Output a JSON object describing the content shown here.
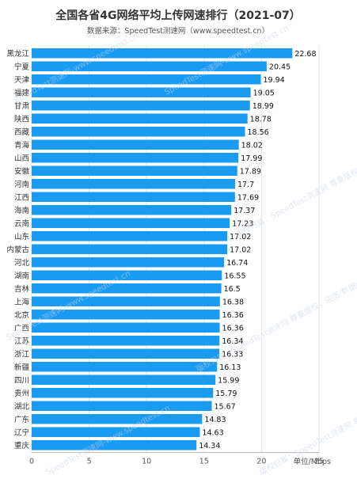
{
  "chart_data": {
    "type": "bar",
    "orientation": "horizontal",
    "title": "全国各省4G网络平均上传网速排行（2021-07）",
    "subtitle": "数据来源：SpeedTest测速网（www.speedtest.cn）",
    "categories": [
      "黑龙江",
      "宁夏",
      "天津",
      "福建",
      "甘肃",
      "陕西",
      "西藏",
      "青海",
      "山西",
      "安徽",
      "河南",
      "江西",
      "海南",
      "云南",
      "山东",
      "内蒙古",
      "河北",
      "湖南",
      "吉林",
      "上海",
      "北京",
      "广西",
      "江苏",
      "浙江",
      "新疆",
      "四川",
      "贵州",
      "湖北",
      "广东",
      "辽宁",
      "重庆"
    ],
    "values": [
      22.68,
      20.45,
      19.94,
      19.05,
      18.99,
      18.78,
      18.56,
      18.02,
      17.99,
      17.89,
      17.7,
      17.69,
      17.37,
      17.23,
      17.02,
      17.02,
      16.74,
      16.55,
      16.5,
      16.38,
      16.36,
      16.36,
      16.34,
      16.33,
      16.13,
      15.99,
      15.79,
      15.67,
      14.83,
      14.63,
      14.34
    ],
    "value_labels": [
      "22.68",
      "20.45",
      "19.94",
      "19.05",
      "18.99",
      "18.78",
      "18.56",
      "18.02",
      "17.99",
      "17.89",
      "17.7",
      "17.69",
      "17.37",
      "17.23",
      "17.02",
      "17.02",
      "16.74",
      "16.55",
      "16.5",
      "16.38",
      "16.36",
      "16.36",
      "16.34",
      "16.33",
      "16.13",
      "15.99",
      "15.79",
      "15.67",
      "14.83",
      "14.63",
      "14.34"
    ],
    "x_ticks": [
      0,
      5,
      10,
      15,
      20,
      25
    ],
    "xlim": [
      0,
      25
    ],
    "xlabel": "单位/Mbps",
    "ylabel": "",
    "bar_color": "#1a9bf2",
    "grid": true,
    "legend": "none"
  },
  "watermarks": [
    "SpeedTest测速网-www.speedtest.cn",
    "版权归属：SpeedTest测速网 尊重版权，盗图/数据必究"
  ]
}
